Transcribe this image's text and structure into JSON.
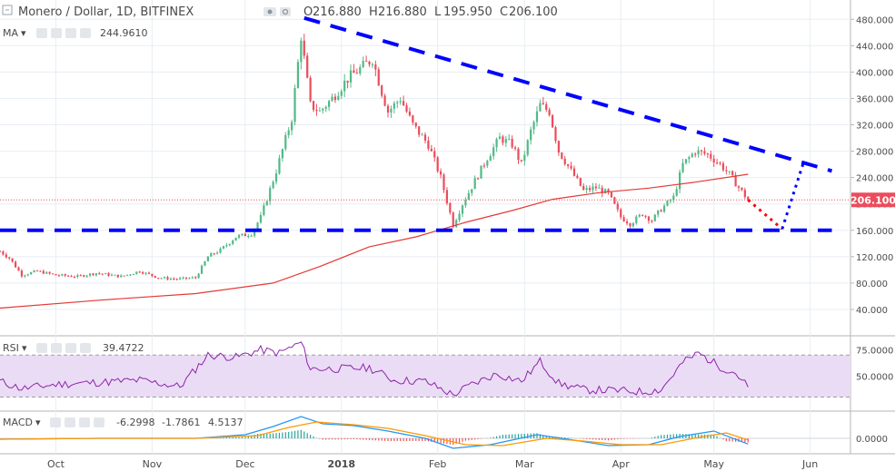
{
  "header": {
    "symbol": "Monero / Dollar, 1D, BITFINEX",
    "ohlc": [
      {
        "key": "O",
        "value": "216.880"
      },
      {
        "key": "H",
        "value": "216.880"
      },
      {
        "key": "L",
        "value": "195.950"
      },
      {
        "key": "C",
        "value": "206.100"
      }
    ]
  },
  "ma_legend": {
    "name": "MA",
    "value": "244.9610"
  },
  "rsi_legend": {
    "name": "RSI",
    "value": "39.4722"
  },
  "macd_legend": {
    "name": "MACD",
    "values": [
      "-6.2998",
      "-1.7861",
      "4.5137"
    ]
  },
  "last_price_label": "206.100",
  "colors": {
    "up": "#53b987",
    "down": "#eb4d5c",
    "ma": "#e53935",
    "trend": "#0000ff",
    "rsi": "#8e24aa",
    "rsi_band": "#eadcf5",
    "macd": "#2196f3",
    "signal": "#ff9800",
    "pane_border": "#b5b5b5",
    "grid": "#e8eef3",
    "text": "#4a4a4a"
  },
  "chart_data": [
    {
      "type": "candlestick",
      "title": "Monero / Dollar, 1D, BITFINEX",
      "ylim": [
        0,
        490
      ],
      "y_ticks": [
        "40.000",
        "80.000",
        "120.000",
        "160.000",
        "200.000",
        "240.000",
        "280.000",
        "320.000",
        "360.000",
        "400.000",
        "440.000",
        "480.000"
      ],
      "x_ticks": [
        "Oct",
        "Nov",
        "Dec",
        "2018",
        "Feb",
        "Mar",
        "Apr",
        "May",
        "Jun"
      ],
      "x_tick_dates": [
        "2017-10-01",
        "2017-11-01",
        "2017-12-01",
        "2018-01-01",
        "2018-02-01",
        "2018-03-01",
        "2018-04-01",
        "2018-05-01",
        "2018-06-01"
      ],
      "x_start": "2017-09-13",
      "x_end": "2018-06-14",
      "close_path": [
        [
          "2017-09-13",
          128
        ],
        [
          "2017-09-16",
          118
        ],
        [
          "2017-09-20",
          92
        ],
        [
          "2017-09-25",
          98
        ],
        [
          "2017-10-01",
          92
        ],
        [
          "2017-10-08",
          90
        ],
        [
          "2017-10-14",
          95
        ],
        [
          "2017-10-22",
          90
        ],
        [
          "2017-10-28",
          98
        ],
        [
          "2017-11-03",
          88
        ],
        [
          "2017-11-09",
          86
        ],
        [
          "2017-11-15",
          88
        ],
        [
          "2017-11-19",
          120
        ],
        [
          "2017-11-23",
          130
        ],
        [
          "2017-11-28",
          150
        ],
        [
          "2017-12-03",
          155
        ],
        [
          "2017-12-06",
          180
        ],
        [
          "2017-12-11",
          250
        ],
        [
          "2017-12-16",
          330
        ],
        [
          "2017-12-19",
          455
        ],
        [
          "2017-12-22",
          350
        ],
        [
          "2017-12-25",
          340
        ],
        [
          "2017-12-29",
          360
        ],
        [
          "2018-01-03",
          390
        ],
        [
          "2018-01-07",
          405
        ],
        [
          "2018-01-11",
          420
        ],
        [
          "2018-01-14",
          370
        ],
        [
          "2018-01-16",
          340
        ],
        [
          "2018-01-20",
          360
        ],
        [
          "2018-01-24",
          320
        ],
        [
          "2018-01-29",
          290
        ],
        [
          "2018-02-02",
          240
        ],
        [
          "2018-02-06",
          168
        ],
        [
          "2018-02-09",
          200
        ],
        [
          "2018-02-13",
          235
        ],
        [
          "2018-02-17",
          270
        ],
        [
          "2018-02-21",
          300
        ],
        [
          "2018-02-25",
          290
        ],
        [
          "2018-02-28",
          260
        ],
        [
          "2018-03-03",
          310
        ],
        [
          "2018-03-06",
          350
        ],
        [
          "2018-03-09",
          340
        ],
        [
          "2018-03-12",
          280
        ],
        [
          "2018-03-16",
          250
        ],
        [
          "2018-03-20",
          220
        ],
        [
          "2018-03-24",
          225
        ],
        [
          "2018-03-28",
          215
        ],
        [
          "2018-04-01",
          180
        ],
        [
          "2018-04-04",
          170
        ],
        [
          "2018-04-08",
          185
        ],
        [
          "2018-04-11",
          175
        ],
        [
          "2018-04-14",
          192
        ],
        [
          "2018-04-18",
          210
        ],
        [
          "2018-04-21",
          260
        ],
        [
          "2018-04-25",
          280
        ],
        [
          "2018-04-29",
          275
        ],
        [
          "2018-05-03",
          260
        ],
        [
          "2018-05-06",
          245
        ],
        [
          "2018-05-09",
          225
        ],
        [
          "2018-05-12",
          206.1
        ]
      ],
      "ma_path": [
        [
          "2017-09-13",
          42
        ],
        [
          "2017-10-15",
          54
        ],
        [
          "2017-11-15",
          64
        ],
        [
          "2017-12-10",
          80
        ],
        [
          "2017-12-25",
          105
        ],
        [
          "2018-01-10",
          135
        ],
        [
          "2018-01-25",
          150
        ],
        [
          "2018-02-10",
          172
        ],
        [
          "2018-02-25",
          190
        ],
        [
          "2018-03-10",
          207
        ],
        [
          "2018-03-25",
          217
        ],
        [
          "2018-04-10",
          224
        ],
        [
          "2018-04-25",
          233
        ],
        [
          "2018-05-12",
          245
        ]
      ],
      "ma_value": 244.961,
      "last_close": 206.1,
      "annotations": [
        {
          "kind": "dashed-line",
          "color": "#0000ff",
          "points": [
            [
              "2017-09-13",
              160
            ],
            [
              "2018-06-08",
              160
            ]
          ]
        },
        {
          "kind": "dashed-line",
          "color": "#0000ff",
          "points": [
            [
              "2017-12-20",
              482
            ],
            [
              "2018-06-08",
              250
            ]
          ]
        },
        {
          "kind": "dotted-line",
          "color": "#ff0000",
          "points": [
            [
              "2018-05-12",
              206
            ],
            [
              "2018-05-23",
              162
            ]
          ]
        },
        {
          "kind": "dotted-line",
          "color": "#0000ff",
          "points": [
            [
              "2018-05-23",
              162
            ],
            [
              "2018-05-30",
              265
            ]
          ]
        }
      ]
    },
    {
      "type": "line",
      "title": "RSI",
      "ylim": [
        20,
        85
      ],
      "y_ticks": [
        "50.0000",
        "75.0000"
      ],
      "band": [
        30,
        70
      ],
      "path": [
        [
          "2017-09-13",
          45
        ],
        [
          "2017-09-20",
          38
        ],
        [
          "2017-10-01",
          42
        ],
        [
          "2017-10-15",
          44
        ],
        [
          "2017-10-28",
          46
        ],
        [
          "2017-11-10",
          40
        ],
        [
          "2017-11-19",
          70
        ],
        [
          "2017-11-28",
          68
        ],
        [
          "2017-12-06",
          75
        ],
        [
          "2017-12-12",
          72
        ],
        [
          "2017-12-19",
          82
        ],
        [
          "2017-12-22",
          57
        ],
        [
          "2018-01-01",
          57
        ],
        [
          "2018-01-10",
          58
        ],
        [
          "2018-01-18",
          46
        ],
        [
          "2018-01-28",
          45
        ],
        [
          "2018-02-06",
          32
        ],
        [
          "2018-02-12",
          42
        ],
        [
          "2018-02-20",
          52
        ],
        [
          "2018-02-28",
          45
        ],
        [
          "2018-03-06",
          64
        ],
        [
          "2018-03-12",
          43
        ],
        [
          "2018-03-20",
          37
        ],
        [
          "2018-04-01",
          36
        ],
        [
          "2018-04-08",
          35
        ],
        [
          "2018-04-14",
          37
        ],
        [
          "2018-04-21",
          63
        ],
        [
          "2018-04-26",
          72
        ],
        [
          "2018-05-03",
          59
        ],
        [
          "2018-05-08",
          53
        ],
        [
          "2018-05-12",
          39.4722
        ]
      ],
      "last_value": 39.4722
    },
    {
      "type": "line",
      "title": "MACD",
      "ylim": [
        -13,
        26
      ],
      "y_ticks": [
        "0.0000"
      ],
      "macd": [
        [
          "2017-09-13",
          -1
        ],
        [
          "2017-10-15",
          0
        ],
        [
          "2017-11-15",
          0
        ],
        [
          "2017-12-01",
          4
        ],
        [
          "2017-12-10",
          13
        ],
        [
          "2017-12-19",
          24
        ],
        [
          "2017-12-26",
          16
        ],
        [
          "2018-01-05",
          14
        ],
        [
          "2018-01-16",
          8
        ],
        [
          "2018-01-28",
          0
        ],
        [
          "2018-02-06",
          -11
        ],
        [
          "2018-02-18",
          -7
        ],
        [
          "2018-03-05",
          4
        ],
        [
          "2018-03-15",
          -1
        ],
        [
          "2018-03-28",
          -8
        ],
        [
          "2018-04-10",
          -7
        ],
        [
          "2018-04-20",
          2
        ],
        [
          "2018-05-01",
          8
        ],
        [
          "2018-05-12",
          -6.2998
        ]
      ],
      "signal": [
        [
          "2017-09-13",
          -1
        ],
        [
          "2017-10-15",
          0
        ],
        [
          "2017-11-15",
          0
        ],
        [
          "2017-12-05",
          3
        ],
        [
          "2017-12-15",
          12
        ],
        [
          "2017-12-24",
          18
        ],
        [
          "2018-01-05",
          15
        ],
        [
          "2018-01-16",
          11
        ],
        [
          "2018-01-28",
          3
        ],
        [
          "2018-02-10",
          -7
        ],
        [
          "2018-02-22",
          -8
        ],
        [
          "2018-03-08",
          0
        ],
        [
          "2018-03-20",
          -3
        ],
        [
          "2018-04-01",
          -7
        ],
        [
          "2018-04-14",
          -7
        ],
        [
          "2018-04-26",
          1
        ],
        [
          "2018-05-05",
          6
        ],
        [
          "2018-05-12",
          -1.7861
        ]
      ],
      "values": [
        -6.2998,
        -1.7861,
        4.5137
      ]
    }
  ]
}
